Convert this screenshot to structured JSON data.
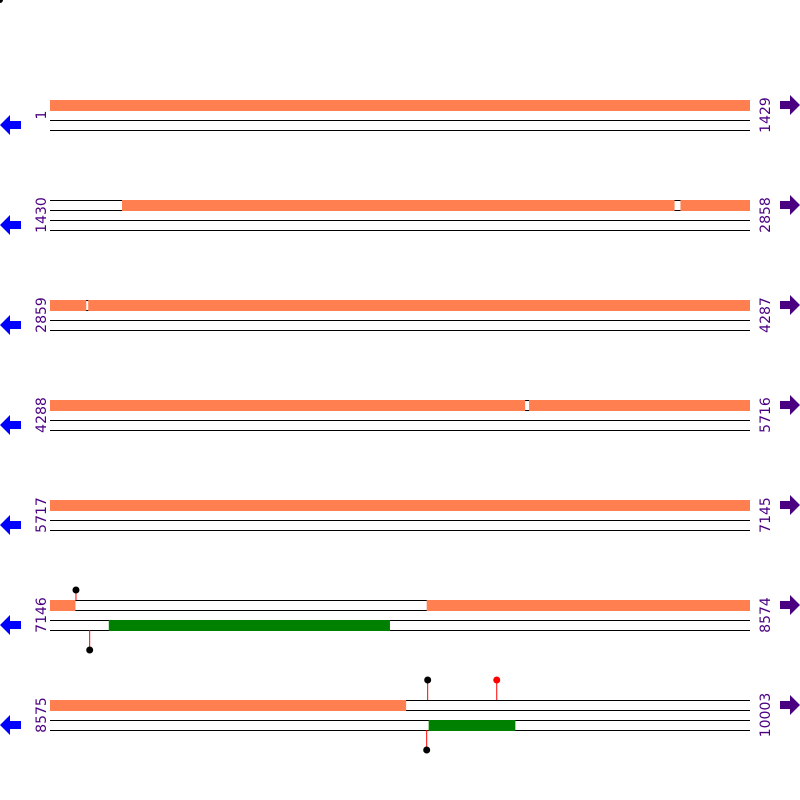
{
  "colors": {
    "feature": "#ff7f50",
    "reverse_feature": "#008000",
    "label": "#4b0082",
    "left_arrow": "#0000ff",
    "right_arrow": "#4b0082",
    "stem": "#ff0000"
  },
  "rows": [
    {
      "start": "1",
      "end": "1429",
      "s": 1,
      "e": 1429,
      "forward": [
        [
          1,
          1429
        ]
      ],
      "reverse": [],
      "markers_top": [],
      "markers_bottom": []
    },
    {
      "start": "1430",
      "end": "2858",
      "s": 1430,
      "e": 2858,
      "forward": [
        [
          1577,
          2704
        ],
        [
          2717,
          2858
        ]
      ],
      "reverse": [],
      "markers_top": [],
      "markers_bottom": []
    },
    {
      "start": "2859",
      "end": "4287",
      "s": 2859,
      "e": 4287,
      "forward": [
        [
          2859,
          2932
        ],
        [
          2937,
          4287
        ]
      ],
      "reverse": [],
      "markers_top": [],
      "markers_bottom": []
    },
    {
      "start": "4288",
      "end": "5716",
      "s": 4288,
      "e": 5716,
      "forward": [
        [
          4288,
          5257
        ],
        [
          5266,
          5716
        ]
      ],
      "reverse": [],
      "markers_top": [],
      "markers_bottom": []
    },
    {
      "start": "5717",
      "end": "7145",
      "s": 5717,
      "e": 7145,
      "forward": [
        [
          5717,
          7145
        ]
      ],
      "reverse": [],
      "markers_top": [],
      "markers_bottom": []
    },
    {
      "start": "7146",
      "end": "8574",
      "s": 7146,
      "e": 8574,
      "forward": [
        [
          7146,
          7197
        ],
        [
          7915,
          8574
        ]
      ],
      "reverse": [
        [
          7266,
          7839
        ]
      ],
      "markers_top": [
        {
          "pos": 7199,
          "color": "#000000"
        }
      ],
      "markers_bottom": [
        {
          "pos": 7227,
          "color": "#000000"
        }
      ]
    },
    {
      "start": "8575",
      "end": "10003",
      "s": 8575,
      "e": 10003,
      "forward": [
        [
          8575,
          9301
        ]
      ],
      "reverse": [
        [
          9348,
          9524
        ]
      ],
      "markers_top": [
        {
          "pos": 9346,
          "color": "#000000"
        },
        {
          "pos": 9487,
          "color": "#ff0000"
        }
      ],
      "markers_bottom": [
        {
          "pos": 9344,
          "color": "#000000"
        }
      ]
    }
  ]
}
